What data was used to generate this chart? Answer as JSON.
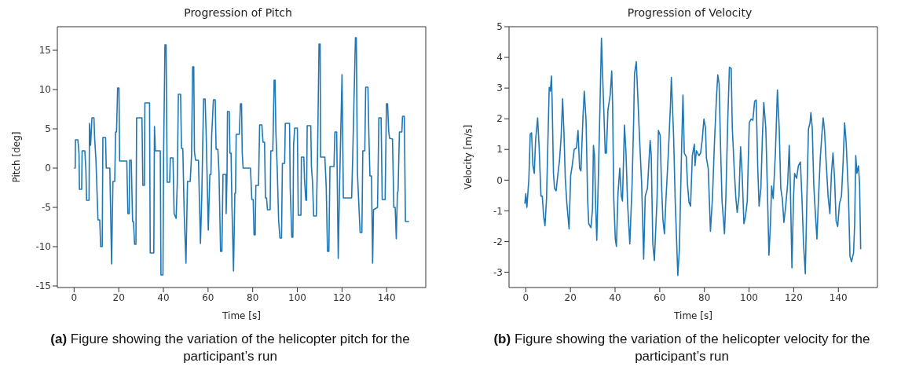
{
  "chart_data": [
    {
      "type": "line",
      "title": "Progression of Pitch",
      "xlabel": "Time [s]",
      "ylabel": "Pitch [deg]",
      "xlim": [
        -7.5,
        157.5
      ],
      "ylim": [
        -15.2,
        18
      ],
      "xticks": [
        0,
        20,
        40,
        60,
        80,
        100,
        120,
        140
      ],
      "yticks": [
        -15,
        -10,
        -5,
        0,
        5,
        10,
        15
      ],
      "grid": false,
      "legend": false,
      "marker": "none",
      "line_style": "solid",
      "annotations": [
        "(a) Figure showing the variation of the helicopter pitch for the participant’s run"
      ],
      "series": [
        {
          "color": "#1f77b4",
          "x": [
            0,
            0.5,
            0.6,
            1.7,
            2.2,
            2.4,
            3.4,
            3.6,
            4.8,
            5.3,
            5.6,
            6.7,
            6.9,
            7.4,
            8.0,
            8.9,
            9.2,
            9.8,
            10.7,
            11.5,
            11.9,
            12.6,
            12.9,
            14.1,
            14.4,
            16.0,
            16.8,
            17.4,
            18.2,
            18.6,
            19.0,
            19.5,
            20.1,
            20.4,
            23.6,
            24.1,
            24.7,
            24.9,
            25.6,
            26.2,
            26.6,
            27.1,
            27.7,
            28.0,
            30.4,
            30.8,
            31.5,
            31.7,
            33.8,
            34.1,
            35.7,
            36.0,
            36.4,
            38.6,
            38.9,
            39.8,
            40.1,
            40.7,
            41.2,
            41.7,
            42.8,
            43.1,
            44.3,
            44.8,
            45.7,
            46.2,
            46.7,
            47.7,
            48.1,
            48.7,
            49.3,
            50.1,
            50.8,
            52.0,
            52.6,
            53.1,
            53.6,
            53.9,
            54.4,
            55.7,
            56.6,
            57.2,
            58.0,
            58.7,
            59.2,
            60.1,
            60.8,
            61.3,
            61.6,
            62.4,
            63.2,
            63.6,
            64.4,
            64.9,
            65.6,
            66.2,
            66.7,
            68.0,
            68.1,
            68.5,
            68.7,
            69.5,
            69.8,
            70.3,
            70.7,
            71.4,
            72.0,
            72.3,
            72.6,
            74.0,
            74.5,
            75.0,
            75.3,
            75.7,
            79.0,
            79.6,
            80.2,
            80.6,
            81.1,
            81.4,
            82.6,
            83.1,
            84.1,
            84.6,
            85.3,
            85.7,
            86.2,
            86.6,
            87.8,
            88.1,
            89.0,
            89.6,
            90.0,
            90.4,
            91.0,
            91.6,
            92.2,
            92.9,
            93.3,
            94.3,
            94.6,
            96.5,
            96.8,
            97.5,
            98.0,
            98.3,
            98.8,
            100.0,
            100.4,
            101.6,
            101.8,
            102.9,
            103.2,
            103.8,
            104.1,
            104.4,
            106.0,
            106.3,
            106.8,
            107.3,
            108.5,
            109.0,
            109.7,
            110.2,
            110.4,
            112.3,
            112.9,
            113.5,
            114.1,
            114.6,
            116.4,
            116.8,
            117.6,
            118.3,
            118.9,
            120.0,
            120.6,
            124.3,
            124.8,
            126.0,
            126.4,
            126.9,
            127.6,
            128.1,
            128.9,
            129.3,
            130.2,
            130.6,
            131.6,
            132.0,
            132.5,
            133.2,
            133.7,
            134.1,
            135.9,
            136.5,
            137.5,
            138.0,
            139.3,
            139.9,
            140.4,
            140.9,
            141.3,
            142.6,
            143.2,
            143.8,
            144.3,
            144.8,
            145.1,
            145.7,
            146.8,
            147.1,
            147.9,
            148.4,
            150.0
          ],
          "values": [
            0,
            0,
            3.6,
            3.6,
            1.9,
            -2.7,
            -2.7,
            2.2,
            2.2,
            -0.3,
            -4.1,
            -4.1,
            5.7,
            2.9,
            6.4,
            6.4,
            3.8,
            1.0,
            -6.6,
            -6.6,
            -10.0,
            -10.0,
            3.9,
            3.9,
            0,
            0,
            -12.2,
            -1.7,
            -1.7,
            4.6,
            4.6,
            10.2,
            10.2,
            0.9,
            0.9,
            -5.8,
            -5.8,
            1.0,
            1.0,
            -6.8,
            -6.8,
            -9.7,
            -9.7,
            6.4,
            6.4,
            -2.2,
            -2.2,
            8.3,
            8.3,
            -10.8,
            -10.8,
            5.3,
            2.2,
            2.2,
            -13.6,
            -13.6,
            1.9,
            15.7,
            15.7,
            -1.8,
            -1.8,
            1.3,
            1.3,
            -5.8,
            -6.4,
            -2.1,
            9.4,
            9.4,
            2.5,
            2.5,
            -5.6,
            -12.1,
            -1.7,
            -1.7,
            1.6,
            12.9,
            12.9,
            2.1,
            1.0,
            1.0,
            -9.6,
            -3.4,
            8.8,
            8.8,
            3.8,
            -7.9,
            -0.8,
            -0.8,
            4.0,
            8.7,
            8.7,
            2.4,
            2.4,
            -0.6,
            -10.6,
            -10.6,
            -0.8,
            -0.8,
            -5.8,
            -0.8,
            7.2,
            7.2,
            1.9,
            1.9,
            -4.8,
            -13.1,
            -3.2,
            -3.2,
            4.3,
            4.3,
            8.2,
            8.2,
            2.0,
            0,
            0,
            -4.0,
            -4.0,
            -8.5,
            -8.5,
            -2.2,
            -2.2,
            5.5,
            5.5,
            3.3,
            3.3,
            -3.8,
            -3.8,
            -5.3,
            -5.3,
            2.2,
            2.2,
            11.2,
            11.2,
            4.4,
            -0.3,
            -6.6,
            -8.9,
            -8.9,
            0.6,
            0.6,
            5.7,
            5.7,
            -2.6,
            -8.8,
            -8.8,
            2.9,
            5.1,
            5.1,
            -6.0,
            -6.0,
            1.4,
            1.4,
            -1.5,
            -4.1,
            -4.1,
            5.4,
            5.4,
            0.2,
            -1.8,
            -6.1,
            -6.1,
            1.0,
            15.8,
            15.8,
            1.4,
            1.4,
            -2.2,
            -10.6,
            -10.6,
            0.2,
            0.2,
            4.6,
            4.6,
            -11.5,
            -2.3,
            11.9,
            -3.8,
            -3.8,
            1.6,
            16.6,
            16.6,
            -0.6,
            -5.1,
            -8.2,
            -8.2,
            2.2,
            2.2,
            10.3,
            10.3,
            4.5,
            -1.0,
            -1.0,
            -12.1,
            -5.3,
            -5.0,
            6.4,
            6.4,
            -4.0,
            -4.0,
            8.2,
            8.2,
            4.7,
            3.8,
            3.7,
            -5.0,
            -5.0,
            -9.0,
            -3.2,
            -2.9,
            4.6,
            4.6,
            6.6,
            6.6,
            -6.8,
            -6.8
          ]
        }
      ]
    },
    {
      "type": "line",
      "title": "Progression of Velocity",
      "xlabel": "Time [s]",
      "ylabel": "Velocity [m/s]",
      "xlim": [
        -7.5,
        157.5
      ],
      "ylim": [
        -3.5,
        5
      ],
      "xticks": [
        0,
        20,
        40,
        60,
        80,
        100,
        120,
        140
      ],
      "yticks": [
        -3,
        -2,
        -1,
        0,
        1,
        2,
        3,
        4,
        5
      ],
      "grid": false,
      "legend": false,
      "marker": "none",
      "line_style": "solid",
      "annotations": [
        "(b) Figure showing the variation of the helicopter velocity for the participant’s run"
      ],
      "series": [
        {
          "color": "#1f77b4",
          "x": [
            -0.4,
            0,
            0.5,
            1.4,
            2.0,
            2.6,
            3.2,
            3.8,
            4.4,
            5.3,
            6.0,
            6.8,
            7.4,
            8.0,
            8.6,
            9.3,
            10.5,
            11.0,
            11.5,
            11.8,
            12.4,
            12.9,
            13.6,
            14.3,
            15.1,
            15.8,
            16.5,
            17.1,
            17.7,
            18.4,
            19.4,
            20.1,
            20.8,
            21.7,
            22.7,
            23.4,
            24.1,
            24.7,
            25.6,
            26.2,
            27.0,
            27.7,
            28.2,
            29.2,
            29.9,
            30.3,
            30.8,
            31.3,
            31.8,
            32.5,
            33.2,
            33.9,
            34.6,
            35.6,
            36.1,
            36.8,
            37.8,
            38.5,
            38.9,
            39.4,
            40.1,
            40.6,
            41.3,
            42.1,
            42.8,
            43.3,
            44.2,
            44.9,
            45.6,
            46.6,
            47.6,
            48.3,
            48.7,
            49.5,
            50.2,
            51.0,
            51.9,
            52.8,
            53.5,
            54.5,
            55.7,
            56.2,
            56.9,
            57.6,
            58.8,
            59.4,
            60.2,
            60.7,
            61.4,
            62.1,
            62.8,
            63.8,
            64.8,
            65.2,
            66.2,
            66.9,
            68.1,
            68.8,
            69.8,
            70.4,
            71.0,
            71.9,
            72.4,
            73.1,
            73.8,
            74.6,
            75.5,
            75.8,
            76.4,
            77.6,
            78.3,
            79.0,
            79.8,
            80.5,
            80.9,
            81.7,
            82.2,
            82.7,
            83.6,
            84.5,
            85.4,
            86.0,
            86.6,
            87.2,
            87.9,
            89.0,
            89.6,
            90.5,
            91.2,
            92.0,
            92.5,
            93.4,
            94.1,
            94.7,
            95.5,
            96.2,
            96.9,
            97.7,
            98.4,
            99.2,
            100.1,
            100.9,
            101.7,
            102.5,
            103.2,
            103.9,
            104.5,
            105.3,
            106.0,
            106.6,
            107.5,
            108.2,
            108.9,
            109.6,
            110.1,
            110.8,
            111.8,
            112.7,
            113.5,
            114.2,
            114.9,
            115.6,
            116.3,
            117.3,
            118.0,
            118.5,
            119.2,
            119.9,
            120.4,
            121.3,
            122.1,
            123.0,
            123.7,
            124.4,
            125.2,
            125.9,
            126.6,
            127.3,
            127.7,
            128.3,
            129.0,
            129.7,
            130.4,
            131.1,
            131.9,
            132.6,
            133.2,
            133.8,
            134.5,
            135.4,
            136.2,
            136.9,
            137.6,
            138.3,
            139.0,
            139.7,
            140.5,
            141.4,
            142.1,
            142.8,
            143.5,
            144.5,
            145.2,
            145.9,
            146.8,
            147.3,
            147.8,
            148.3,
            149.0,
            149.5,
            150.0
          ],
          "values": [
            -0.77,
            -0.44,
            -0.89,
            0.06,
            1.5,
            1.54,
            0.47,
            0.22,
            1.3,
            2.03,
            1.05,
            -0.52,
            -0.52,
            -1.18,
            -1.49,
            -0.6,
            3.02,
            2.9,
            3.39,
            2.6,
            0.22,
            -0.27,
            -0.35,
            0.14,
            0.63,
            1.37,
            2.65,
            1.54,
            0.06,
            -0.77,
            -1.59,
            0.14,
            0.47,
            1.0,
            1.05,
            1.62,
            0.39,
            0.3,
            2.03,
            2.9,
            1.95,
            -0.6,
            -1.42,
            -1.55,
            -0.93,
            1.13,
            0.8,
            -0.85,
            -1.96,
            0.06,
            2.28,
            4.63,
            3.02,
            0.88,
            0.88,
            2.28,
            2.77,
            3.56,
            2.44,
            -0.6,
            -1.92,
            -2.16,
            -0.44,
            0.39,
            -0.52,
            -0.68,
            1.79,
            0.88,
            -0.77,
            -2.08,
            -0.19,
            1.87,
            3.47,
            3.86,
            2.69,
            1.29,
            -0.11,
            -2.58,
            -0.52,
            -0.27,
            1.29,
            0.8,
            -2.08,
            -2.62,
            -0.6,
            1.62,
            1.46,
            0.06,
            -1.26,
            -1.75,
            -0.6,
            0.8,
            2.44,
            3.35,
            1.46,
            -0.6,
            -3.11,
            -2.25,
            1.05,
            2.77,
            0.88,
            0.76,
            -0.11,
            -0.72,
            -0.85,
            0.8,
            1.17,
            0.47,
            0.96,
            0.8,
            0.88,
            1.29,
            1.99,
            1.7,
            0.72,
            0.39,
            -0.6,
            -1.67,
            -0.6,
            1.21,
            2.69,
            3.43,
            3.14,
            1.21,
            -0.68,
            -1.75,
            -0.6,
            2.03,
            3.68,
            3.64,
            1.7,
            0.3,
            -0.6,
            -1.05,
            -0.52,
            1.09,
            0.22,
            -1.42,
            -1.18,
            -0.68,
            1.87,
            1.99,
            1.95,
            2.57,
            2.61,
            0.39,
            -0.85,
            -0.27,
            1.46,
            2.53,
            1.7,
            -0.27,
            -2.45,
            -1.42,
            -0.19,
            -0.6,
            0.88,
            2.94,
            1.7,
            -0.27,
            -0.6,
            -1.38,
            -0.93,
            -0.11,
            1.13,
            -0.19,
            -2.86,
            -0.6,
            0.22,
            0.06,
            0.47,
            0.59,
            -0.6,
            -2.08,
            -3.05,
            -0.6,
            1.66,
            1.87,
            2.2,
            1.7,
            -0.19,
            -1.09,
            -1.92,
            -0.6,
            0.72,
            1.46,
            2.03,
            1.62,
            0.63,
            -0.52,
            -1.09,
            0.22,
            0.88,
            0.06,
            -1.34,
            -1.51,
            -0.77,
            -0.52,
            0.55,
            1.87,
            1.21,
            -0.44,
            -2.49,
            -2.66,
            -2.37,
            -1.42,
            0.8,
            0.22,
            0.47,
            -0.11,
            -2.25
          ]
        }
      ]
    }
  ]
}
